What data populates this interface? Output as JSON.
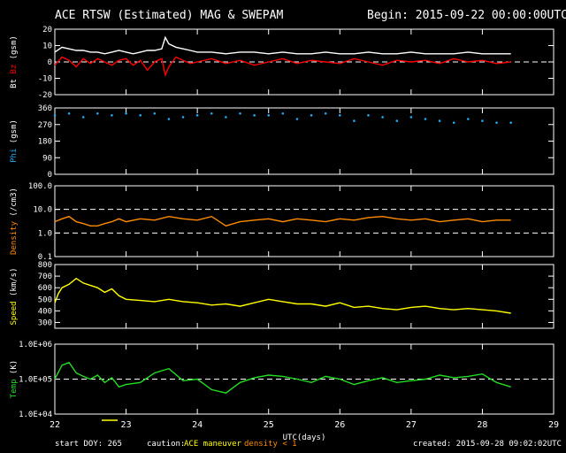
{
  "header": {
    "title": "ACE RTSW (Estimated) MAG & SWEPAM",
    "begin": "Begin: 2015-09-22 00:00:00UTC"
  },
  "footer": {
    "start_doy": "start DOY: 265",
    "caution_label": "caution:",
    "maneuver_label": "ACE maneuver",
    "density_label": "density < 1",
    "created": "created: 2015-09-28 09:02:02UTC"
  },
  "colors": {
    "background": "#000000",
    "axes": "#ffffff",
    "bt": "#ffffff",
    "bz": "#ff0000",
    "phi": "#22aaee",
    "density": "#ff8c00",
    "speed": "#ffff00",
    "temp": "#22dd22",
    "maneuver": "#ffff00"
  },
  "chart_data": [
    {
      "type": "line",
      "title": "ACE RTSW (Estimated) MAG & SWEPAM",
      "panel": "magnetic-field",
      "ylabel": [
        "Bt",
        "Bz",
        "(gsm)"
      ],
      "ylabel_colors": [
        "#ffffff",
        "#ff0000",
        "#ffffff"
      ],
      "ylim": [
        -20,
        20
      ],
      "yticks": [
        20,
        10,
        0,
        -10,
        -20
      ],
      "yticklabels": [
        "20",
        "10",
        "0",
        "-10",
        "-20"
      ],
      "reference_lines": [
        0
      ],
      "xlim": [
        22,
        28.4
      ],
      "series": [
        {
          "name": "Bt",
          "color": "#ffffff",
          "x": [
            22.0,
            22.1,
            22.2,
            22.3,
            22.4,
            22.5,
            22.6,
            22.7,
            22.8,
            22.9,
            23.0,
            23.1,
            23.2,
            23.3,
            23.4,
            23.5,
            23.55,
            23.6,
            23.7,
            23.8,
            23.9,
            24.0,
            24.2,
            24.4,
            24.6,
            24.8,
            25.0,
            25.2,
            25.4,
            25.6,
            25.8,
            26.0,
            26.2,
            26.4,
            26.6,
            26.8,
            27.0,
            27.2,
            27.4,
            27.6,
            27.8,
            28.0,
            28.2,
            28.4
          ],
          "values": [
            6,
            9,
            8,
            7,
            7,
            6,
            6,
            5,
            6,
            7,
            6,
            5,
            6,
            7,
            7,
            8,
            15,
            11,
            9,
            8,
            7,
            6,
            6,
            5,
            6,
            6,
            5,
            6,
            5,
            5,
            6,
            5,
            5,
            6,
            5,
            5,
            6,
            5,
            5,
            5,
            6,
            5,
            5,
            5
          ]
        },
        {
          "name": "Bz",
          "color": "#ff0000",
          "x": [
            22.0,
            22.1,
            22.2,
            22.3,
            22.4,
            22.5,
            22.6,
            22.7,
            22.8,
            22.9,
            23.0,
            23.1,
            23.2,
            23.3,
            23.4,
            23.5,
            23.55,
            23.6,
            23.7,
            23.8,
            23.9,
            24.0,
            24.2,
            24.4,
            24.6,
            24.8,
            25.0,
            25.2,
            25.4,
            25.6,
            25.8,
            26.0,
            26.2,
            26.4,
            26.6,
            26.8,
            27.0,
            27.2,
            27.4,
            27.6,
            27.8,
            28.0,
            28.2,
            28.4
          ],
          "values": [
            -2,
            3,
            1,
            -3,
            2,
            -1,
            2,
            0,
            -2,
            1,
            2,
            -2,
            1,
            -5,
            0,
            2,
            -8,
            -3,
            3,
            1,
            -1,
            0,
            2,
            -1,
            1,
            -2,
            0,
            2,
            -1,
            1,
            0,
            -1,
            2,
            0,
            -2,
            1,
            0,
            1,
            -1,
            2,
            0,
            1,
            -1,
            0
          ]
        }
      ]
    },
    {
      "type": "scatter",
      "panel": "phi",
      "ylabel": [
        "Phi",
        "(gsm)"
      ],
      "ylabel_colors": [
        "#22aaee",
        "#ffffff"
      ],
      "ylim": [
        0,
        360
      ],
      "yticks": [
        360,
        270,
        180,
        90,
        0
      ],
      "yticklabels": [
        "360",
        "270",
        "180",
        "90",
        "0"
      ],
      "xlim": [
        22,
        28.4
      ],
      "series": [
        {
          "name": "Phi",
          "color": "#22aaee",
          "x": [
            22.0,
            22.2,
            22.4,
            22.6,
            22.8,
            23.0,
            23.2,
            23.4,
            23.6,
            23.8,
            24.0,
            24.2,
            24.4,
            24.6,
            24.8,
            25.0,
            25.2,
            25.4,
            25.6,
            25.8,
            26.0,
            26.2,
            26.4,
            26.6,
            26.8,
            27.0,
            27.2,
            27.4,
            27.6,
            27.8,
            28.0,
            28.2,
            28.4
          ],
          "values": [
            320,
            330,
            310,
            330,
            320,
            330,
            320,
            330,
            300,
            310,
            320,
            330,
            310,
            330,
            320,
            320,
            330,
            300,
            320,
            330,
            320,
            290,
            320,
            310,
            290,
            310,
            300,
            290,
            280,
            300,
            290,
            280,
            280
          ]
        }
      ]
    },
    {
      "type": "line",
      "panel": "density",
      "ylabel": [
        "Density",
        "(/cm3)"
      ],
      "ylabel_colors": [
        "#ff8c00",
        "#ffffff"
      ],
      "yscale": "log",
      "ylim": [
        0.1,
        100
      ],
      "yticks": [
        100,
        10,
        1,
        0.1
      ],
      "yticklabels": [
        "100.0",
        "10.0",
        "1.0",
        "0.1"
      ],
      "reference_lines": [
        10,
        1
      ],
      "xlim": [
        22,
        28.4
      ],
      "series": [
        {
          "name": "Density",
          "color": "#ff8c00",
          "x": [
            22.0,
            22.1,
            22.2,
            22.3,
            22.4,
            22.5,
            22.6,
            22.7,
            22.8,
            22.9,
            23.0,
            23.2,
            23.4,
            23.6,
            23.8,
            24.0,
            24.2,
            24.4,
            24.6,
            24.8,
            25.0,
            25.2,
            25.4,
            25.6,
            25.8,
            26.0,
            26.2,
            26.4,
            26.6,
            26.8,
            27.0,
            27.2,
            27.4,
            27.6,
            27.8,
            28.0,
            28.2,
            28.4
          ],
          "values": [
            3,
            4,
            5,
            3,
            2.5,
            2,
            2,
            2.5,
            3,
            4,
            3,
            4,
            3.5,
            5,
            4,
            3.5,
            5,
            2,
            3,
            3.5,
            4,
            3,
            4,
            3.5,
            3,
            4,
            3.5,
            4.5,
            5,
            4,
            3.5,
            4,
            3,
            3.5,
            4,
            3,
            3.5,
            3.5
          ]
        }
      ]
    },
    {
      "type": "line",
      "panel": "speed",
      "ylabel": [
        "Speed",
        "(km/s)"
      ],
      "ylabel_colors": [
        "#ffff00",
        "#ffffff"
      ],
      "ylim": [
        250,
        800
      ],
      "yticks": [
        800,
        700,
        600,
        500,
        400,
        300
      ],
      "yticklabels": [
        "800",
        "700",
        "600",
        "500",
        "400",
        "300"
      ],
      "xlim": [
        22,
        28.4
      ],
      "series": [
        {
          "name": "Speed",
          "color": "#ffff00",
          "x": [
            22.0,
            22.05,
            22.1,
            22.2,
            22.3,
            22.4,
            22.5,
            22.6,
            22.7,
            22.8,
            22.9,
            23.0,
            23.2,
            23.4,
            23.6,
            23.8,
            24.0,
            24.2,
            24.4,
            24.6,
            24.8,
            25.0,
            25.2,
            25.4,
            25.6,
            25.8,
            26.0,
            26.2,
            26.4,
            26.6,
            26.8,
            27.0,
            27.2,
            27.4,
            27.6,
            27.8,
            28.0,
            28.2,
            28.4
          ],
          "values": [
            470,
            550,
            600,
            630,
            680,
            640,
            620,
            600,
            560,
            590,
            530,
            500,
            490,
            480,
            500,
            480,
            470,
            450,
            460,
            440,
            470,
            500,
            480,
            460,
            460,
            440,
            470,
            430,
            440,
            420,
            410,
            430,
            440,
            420,
            410,
            420,
            410,
            400,
            380
          ]
        }
      ]
    },
    {
      "type": "line",
      "panel": "temperature",
      "ylabel": [
        "Temp",
        "(K)"
      ],
      "ylabel_colors": [
        "#22dd22",
        "#ffffff"
      ],
      "yscale": "log",
      "ylim": [
        10000,
        1000000
      ],
      "yticks": [
        1000000,
        100000,
        10000
      ],
      "yticklabels": [
        "1.0E+06",
        "1.0E+05",
        "1.0E+04"
      ],
      "reference_lines": [
        100000
      ],
      "xlim": [
        22,
        28.4
      ],
      "xticks": [
        22,
        23,
        24,
        25,
        26,
        27,
        28,
        29
      ],
      "xticklabels": [
        "22",
        "23",
        "24",
        "25",
        "26",
        "27",
        "28",
        "29"
      ],
      "xlabel": "UTC(days)",
      "series": [
        {
          "name": "Temp",
          "color": "#22dd22",
          "x": [
            22.0,
            22.1,
            22.2,
            22.3,
            22.4,
            22.5,
            22.6,
            22.7,
            22.8,
            22.9,
            23.0,
            23.2,
            23.4,
            23.6,
            23.8,
            24.0,
            24.2,
            24.4,
            24.6,
            24.8,
            25.0,
            25.2,
            25.4,
            25.6,
            25.8,
            26.0,
            26.2,
            26.4,
            26.6,
            26.8,
            27.0,
            27.2,
            27.4,
            27.6,
            27.8,
            28.0,
            28.2,
            28.4
          ],
          "values": [
            100000,
            250000,
            300000,
            150000,
            120000,
            100000,
            130000,
            80000,
            110000,
            60000,
            70000,
            80000,
            150000,
            200000,
            90000,
            100000,
            50000,
            40000,
            80000,
            110000,
            130000,
            120000,
            100000,
            80000,
            120000,
            100000,
            70000,
            90000,
            110000,
            80000,
            90000,
            100000,
            130000,
            110000,
            120000,
            140000,
            80000,
            60000
          ]
        }
      ]
    }
  ]
}
